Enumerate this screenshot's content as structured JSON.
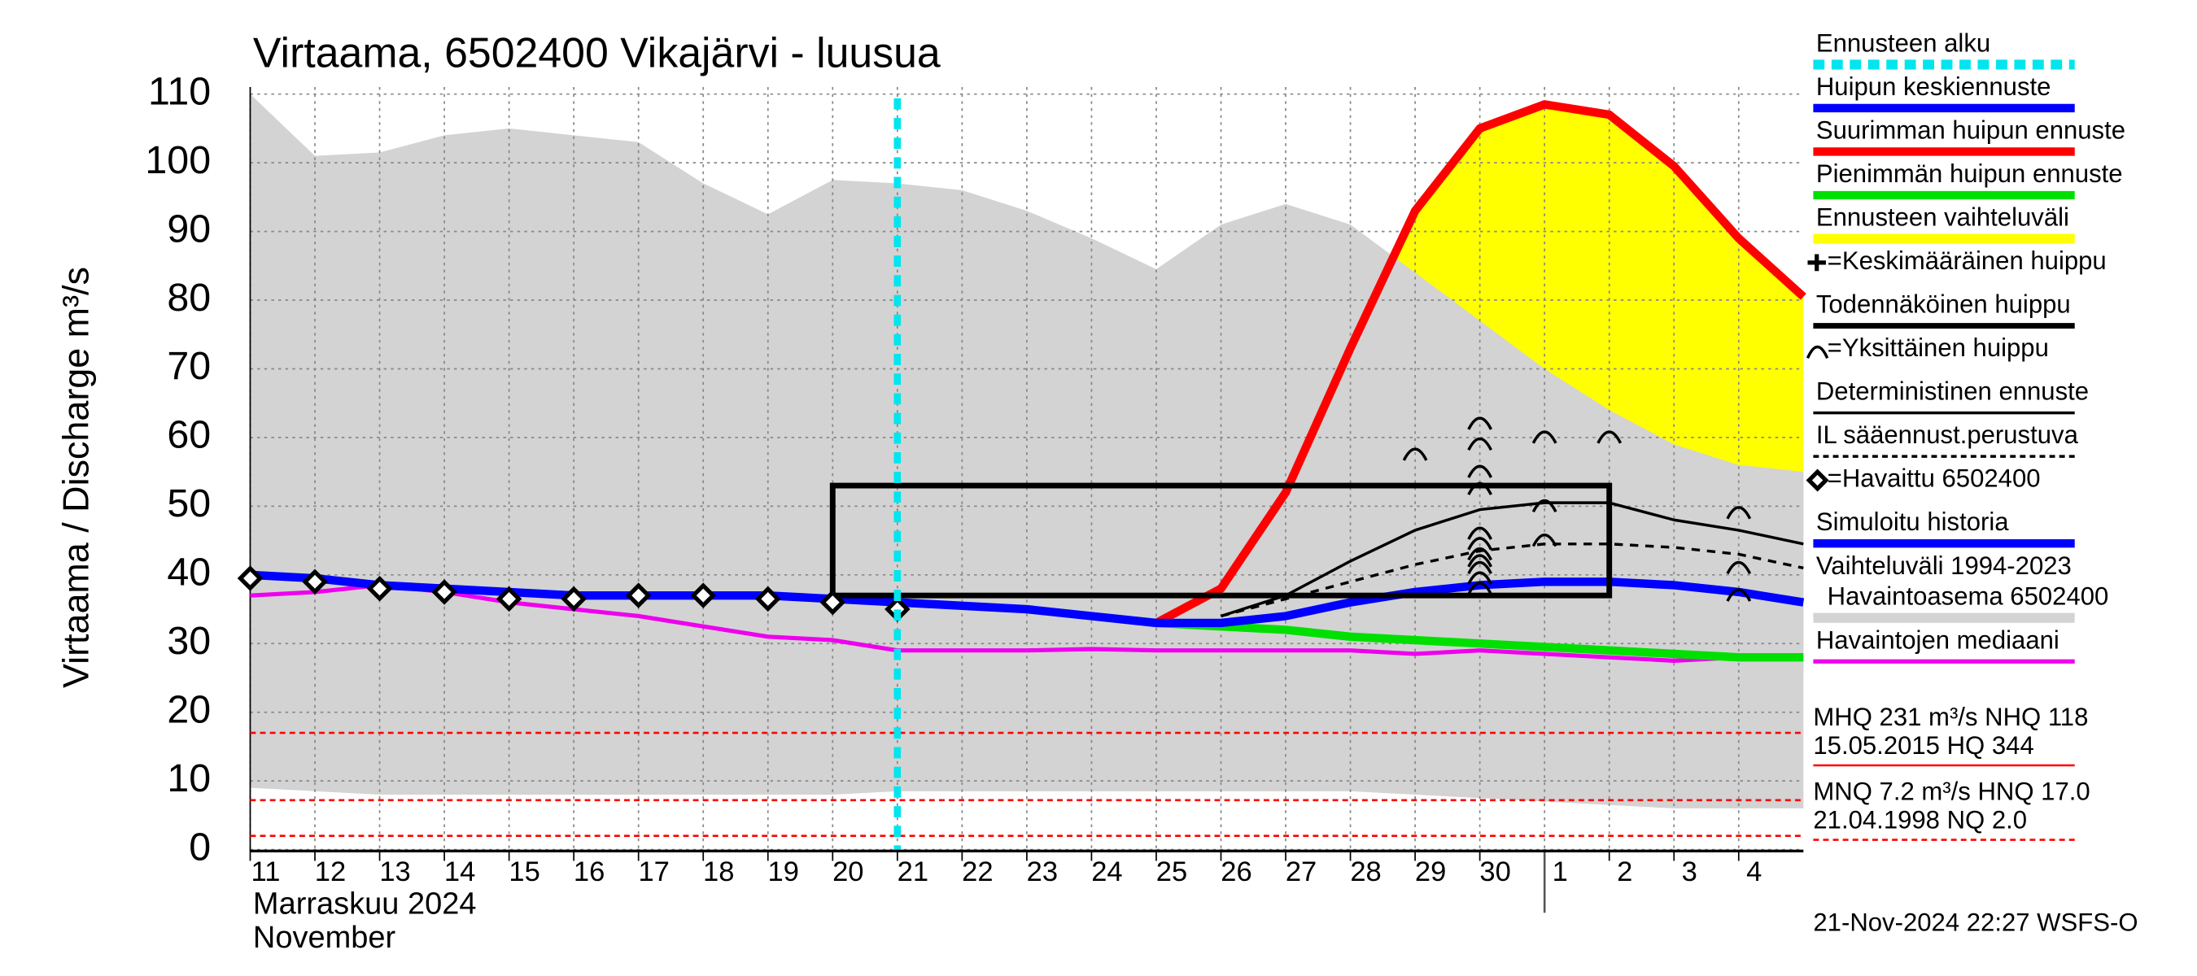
{
  "chart_data": {
    "type": "line",
    "title": "Virtaama, 6502400 Vikajärvi - luusua",
    "y_label": "Virtaama / Discharge    m³/s",
    "x_label_lines": [
      "Marraskuu 2024",
      "November"
    ],
    "footer": "21-Nov-2024 22:27 WSFS-O",
    "xlim": [
      0,
      24
    ],
    "xticks": [
      {
        "value": 0,
        "label": "11"
      },
      {
        "value": 1,
        "label": "12"
      },
      {
        "value": 2,
        "label": "13"
      },
      {
        "value": 3,
        "label": "14"
      },
      {
        "value": 4,
        "label": "15"
      },
      {
        "value": 5,
        "label": "16"
      },
      {
        "value": 6,
        "label": "17"
      },
      {
        "value": 7,
        "label": "18"
      },
      {
        "value": 8,
        "label": "19"
      },
      {
        "value": 9,
        "label": "20"
      },
      {
        "value": 10,
        "label": "21"
      },
      {
        "value": 11,
        "label": "22"
      },
      {
        "value": 12,
        "label": "23"
      },
      {
        "value": 13,
        "label": "24"
      },
      {
        "value": 14,
        "label": "25"
      },
      {
        "value": 15,
        "label": "26"
      },
      {
        "value": 16,
        "label": "27"
      },
      {
        "value": 17,
        "label": "28"
      },
      {
        "value": 18,
        "label": "29"
      },
      {
        "value": 19,
        "label": "30"
      },
      {
        "value": 20,
        "label": "1"
      },
      {
        "value": 21,
        "label": "2"
      },
      {
        "value": 22,
        "label": "3"
      },
      {
        "value": 23,
        "label": "4"
      }
    ],
    "month_tick": 20,
    "ylim": [
      0,
      110
    ],
    "yticks": [
      0,
      10,
      20,
      30,
      40,
      50,
      60,
      70,
      80,
      90,
      100,
      110
    ],
    "grid": true,
    "reference_lines": {
      "color": "#ff0000",
      "values": [
        17,
        7.2,
        2
      ]
    },
    "series": [
      {
        "name": "Ennusteen alku",
        "kind": "vline",
        "color": "#00e5ee",
        "width": 5,
        "dash": true,
        "x": 10
      },
      {
        "name": "Huipun keskiennuste",
        "kind": "line",
        "color": "#0000ff",
        "width": 6,
        "x": [
          10,
          11,
          12,
          13,
          14,
          15,
          16,
          17,
          18,
          19,
          20,
          21,
          22,
          23,
          24
        ],
        "values": [
          36,
          35.5,
          35,
          34,
          33,
          33,
          34,
          36,
          37.5,
          38.5,
          39,
          39,
          38.5,
          37.5,
          36
        ]
      },
      {
        "name": "Suurimman huipun ennuste",
        "kind": "line",
        "color": "#ff0000",
        "width": 6,
        "x": [
          14,
          15,
          16,
          17,
          18,
          19,
          20,
          21,
          22,
          23,
          24
        ],
        "values": [
          33,
          38,
          52,
          73,
          93,
          105,
          108.5,
          107,
          99.5,
          89,
          80.5
        ]
      },
      {
        "name": "Pienimmän huipun ennuste",
        "kind": "line",
        "color": "#00e000",
        "width": 6,
        "x": [
          14,
          15,
          16,
          17,
          18,
          19,
          20,
          21,
          22,
          23,
          24
        ],
        "values": [
          33,
          32.5,
          32,
          31,
          30.5,
          30,
          29.5,
          29,
          28.5,
          28,
          28
        ]
      },
      {
        "name": "Ennusteen vaihteluväli",
        "kind": "band",
        "color": "#ffff00",
        "x": [
          14,
          15,
          16,
          17,
          18,
          19,
          20,
          21,
          22,
          23,
          24
        ],
        "upper": [
          38,
          45,
          53,
          73,
          93,
          105,
          108.5,
          107,
          99.5,
          89,
          80.5
        ],
        "lower": [
          33,
          32.5,
          32,
          31,
          30.5,
          30,
          29,
          28.5,
          27.5,
          26.5,
          25.5
        ]
      },
      {
        "name": "=Keskimääräinen huippu",
        "kind": "plus",
        "color": "#000000",
        "x": [],
        "values": []
      },
      {
        "name": "Todennäköinen huippu",
        "kind": "box",
        "color": "#000000",
        "width": 4,
        "xrange": [
          9,
          21
        ],
        "yrange": [
          37,
          53
        ]
      },
      {
        "name": "=Yksittäinen huippu",
        "kind": "arc",
        "color": "#000000",
        "x": [
          18,
          19,
          19,
          19,
          19,
          19,
          19,
          19,
          19,
          19,
          19,
          19,
          20,
          20,
          20,
          21,
          23,
          23,
          23
        ],
        "values": [
          57.5,
          62,
          59,
          55,
          52.5,
          46,
          44.5,
          43,
          42,
          41,
          39.5,
          38,
          60,
          50,
          45,
          60,
          49,
          41,
          37
        ]
      },
      {
        "name": "Deterministinen ennuste",
        "kind": "line",
        "color": "#000000",
        "width": 2,
        "x": [
          15,
          16,
          17,
          18,
          19,
          20,
          21,
          22,
          23,
          24
        ],
        "values": [
          34,
          37,
          42,
          46.5,
          49.5,
          50.5,
          50.5,
          48,
          46.5,
          44.5
        ]
      },
      {
        "name": "IL sääennust.perustuva",
        "kind": "line",
        "color": "#000000",
        "width": 2,
        "dash": true,
        "x": [
          15,
          16,
          17,
          18,
          19,
          20,
          21,
          22,
          23,
          24
        ],
        "values": [
          34,
          36.5,
          39,
          41.5,
          43.5,
          44.5,
          44.5,
          44,
          43,
          41
        ]
      },
      {
        "name": "=Havaittu 6502400",
        "kind": "diamond",
        "color": "#000000",
        "x": [
          0,
          1,
          2,
          3,
          4,
          5,
          6,
          7,
          8,
          9,
          10
        ],
        "values": [
          39.5,
          39,
          38,
          37.5,
          36.5,
          36.5,
          37,
          37,
          36.5,
          36,
          35
        ]
      },
      {
        "name": "Simuloitu historia",
        "kind": "line",
        "color": "#0000ff",
        "width": 6,
        "x": [
          0,
          1,
          2,
          3,
          4,
          5,
          6,
          7,
          8,
          9,
          10
        ],
        "values": [
          40,
          39.5,
          38.5,
          38,
          37.5,
          37,
          37,
          37,
          37,
          36.5,
          36
        ]
      },
      {
        "name": "Vaihteluväli 1994-2023",
        "note": "Havaintoasema 6502400",
        "kind": "band",
        "color": "#d3d3d3",
        "x": [
          0,
          1,
          2,
          3,
          4,
          5,
          6,
          7,
          8,
          9,
          10,
          11,
          12,
          13,
          14,
          15,
          16,
          17,
          18,
          19,
          20,
          21,
          22,
          23,
          24
        ],
        "upper": [
          110,
          101,
          101.5,
          104,
          105,
          104,
          103,
          97,
          92.5,
          97.5,
          97,
          96,
          93,
          89,
          84.5,
          91,
          94,
          91,
          84,
          77,
          70,
          64,
          59,
          56,
          55
        ],
        "lower": [
          9,
          8.5,
          8,
          8,
          8,
          8,
          8,
          8,
          8,
          8,
          8.5,
          8.5,
          8.5,
          8.5,
          8.5,
          8.5,
          8.5,
          8.5,
          8,
          7.5,
          7,
          6.5,
          6,
          6,
          6
        ]
      },
      {
        "name": "Havaintojen mediaani",
        "kind": "line",
        "color": "#ee00ee",
        "width": 3,
        "x": [
          0,
          1,
          2,
          3,
          4,
          5,
          6,
          7,
          8,
          9,
          10,
          11,
          12,
          13,
          14,
          15,
          16,
          17,
          18,
          19,
          20,
          21,
          22,
          23,
          24
        ],
        "values": [
          37,
          37.5,
          38.5,
          37.5,
          36,
          35,
          34,
          32.5,
          31,
          30.5,
          29,
          29,
          29,
          29.2,
          29,
          29,
          29,
          29,
          28.5,
          29,
          28.5,
          28,
          27.5,
          28,
          28
        ]
      }
    ],
    "stats": [
      "MHQ  231 m³/s NHQ  118",
      "15.05.2015 HQ  344",
      "MNQ  7.2 m³/s HNQ 17.0",
      "21.04.1998 NQ  2.0"
    ]
  }
}
